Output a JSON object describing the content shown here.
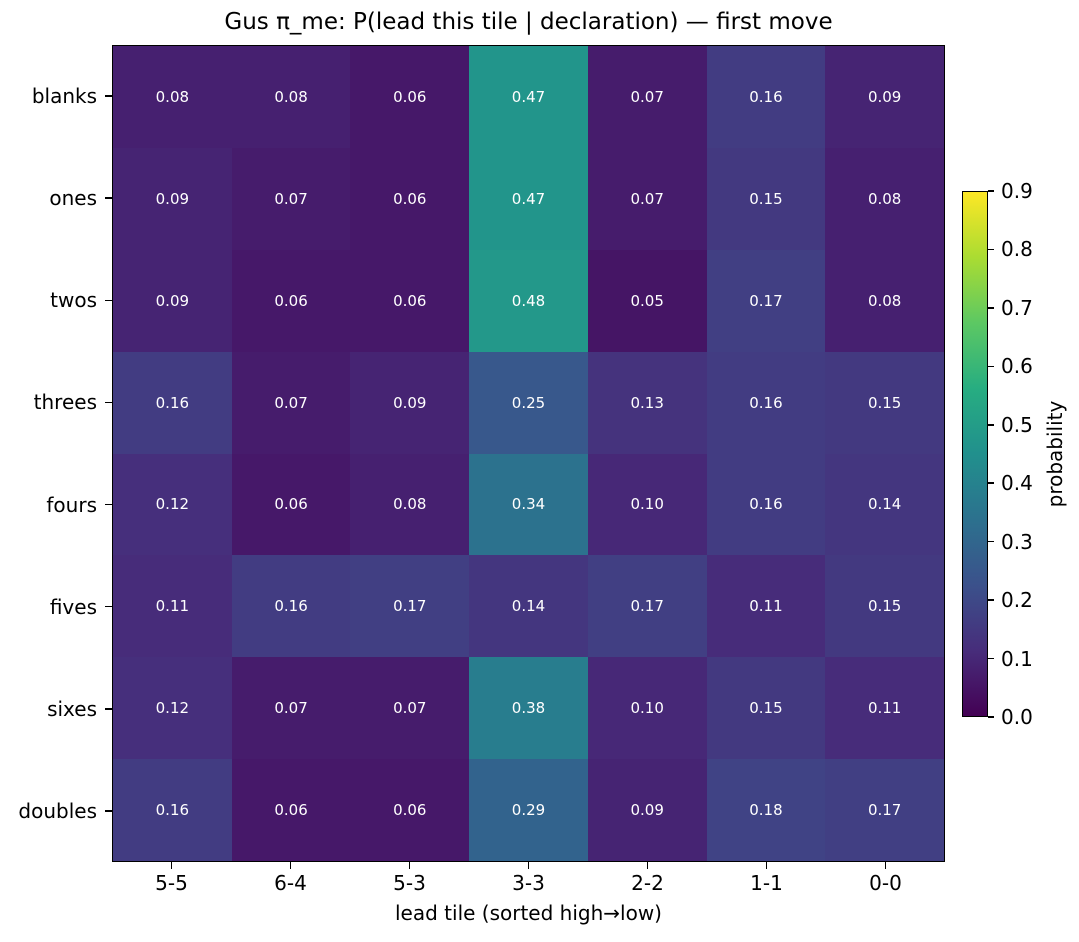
{
  "chart_data": {
    "type": "heatmap",
    "title": "Gus π_me: P(lead this tile | declaration) — first move",
    "xlabel": "lead tile (sorted high→low)",
    "ylabel": "",
    "columns": [
      "5-5",
      "6-4",
      "5-3",
      "3-3",
      "2-2",
      "1-1",
      "0-0"
    ],
    "rows": [
      "blanks",
      "ones",
      "twos",
      "threes",
      "fours",
      "fives",
      "sixes",
      "doubles"
    ],
    "values": [
      [
        0.08,
        0.08,
        0.06,
        0.47,
        0.07,
        0.16,
        0.09
      ],
      [
        0.09,
        0.07,
        0.06,
        0.47,
        0.07,
        0.15,
        0.08
      ],
      [
        0.09,
        0.06,
        0.06,
        0.48,
        0.05,
        0.17,
        0.08
      ],
      [
        0.16,
        0.07,
        0.09,
        0.25,
        0.13,
        0.16,
        0.15
      ],
      [
        0.12,
        0.06,
        0.08,
        0.34,
        0.1,
        0.16,
        0.14
      ],
      [
        0.11,
        0.16,
        0.17,
        0.14,
        0.17,
        0.11,
        0.15
      ],
      [
        0.12,
        0.07,
        0.07,
        0.38,
        0.1,
        0.15,
        0.11
      ],
      [
        0.16,
        0.06,
        0.06,
        0.29,
        0.09,
        0.18,
        0.17
      ]
    ],
    "value_decimals": 2,
    "cell_text_color": "#ffffff",
    "colormap": "viridis",
    "vmin": 0.0,
    "vmax": 0.9,
    "grid": false,
    "colorbar": {
      "label": "probability",
      "ticks": [
        "0.0",
        "0.1",
        "0.2",
        "0.3",
        "0.4",
        "0.5",
        "0.6",
        "0.7",
        "0.8",
        "0.9"
      ],
      "position": "right"
    },
    "viridis_anchors": [
      "#440154",
      "#472d7b",
      "#3b518b",
      "#2c718e",
      "#21908d",
      "#27ad81",
      "#5cc863",
      "#aadc32",
      "#fde725"
    ]
  }
}
